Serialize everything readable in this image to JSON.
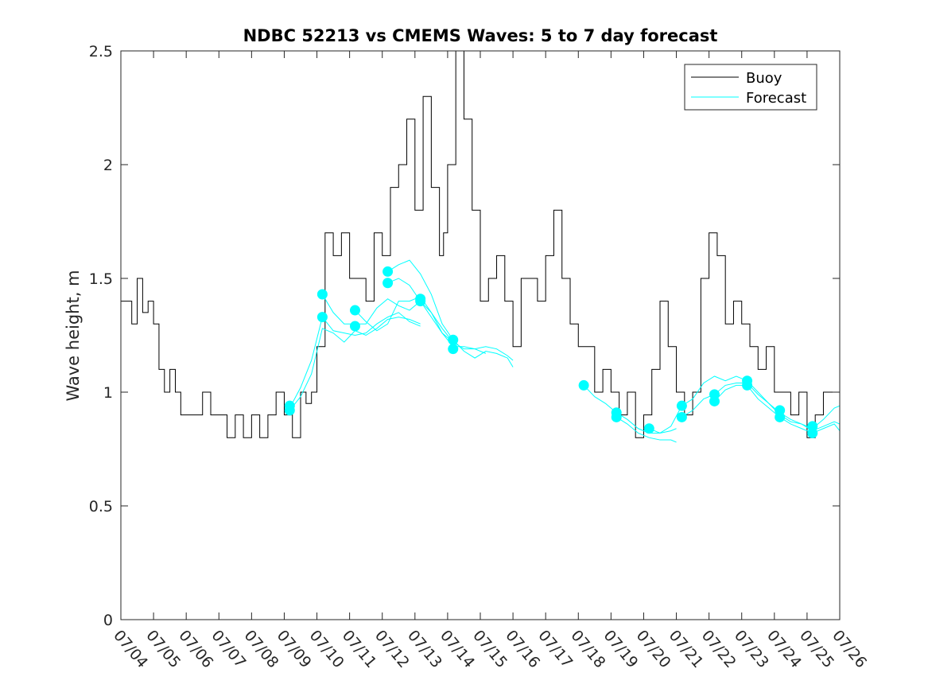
{
  "chart_data": {
    "type": "line",
    "title": "NDBC 52213 vs CMEMS Waves: 5 to 7 day forecast",
    "xlabel": "",
    "ylabel": "Wave height, m",
    "ylim": [
      0,
      2.5
    ],
    "yticks": [
      0,
      0.5,
      1,
      1.5,
      2,
      2.5
    ],
    "xlim": [
      "07/04",
      "07/26"
    ],
    "xticks": [
      "07/04",
      "07/05",
      "07/06",
      "07/07",
      "07/08",
      "07/09",
      "07/10",
      "07/11",
      "07/12",
      "07/13",
      "07/14",
      "07/15",
      "07/16",
      "07/17",
      "07/18",
      "07/19",
      "07/20",
      "07/21",
      "07/22",
      "07/23",
      "07/24",
      "07/25",
      "07/26"
    ],
    "legend": {
      "position": "top-right",
      "entries": [
        "Buoy",
        "Forecast"
      ]
    },
    "colors": {
      "buoy": "#000000",
      "forecast": "#00ffff"
    },
    "buoy": {
      "name": "Buoy",
      "x": [
        "07/04 00:00",
        "07/04 04:00",
        "07/04 08:00",
        "07/04 12:00",
        "07/04 16:00",
        "07/04 20:00",
        "07/05 00:00",
        "07/05 04:00",
        "07/05 08:00",
        "07/05 12:00",
        "07/05 16:00",
        "07/05 20:00",
        "07/06 00:00",
        "07/06 06:00",
        "07/06 12:00",
        "07/06 18:00",
        "07/07 00:00",
        "07/07 06:00",
        "07/07 12:00",
        "07/07 18:00",
        "07/08 00:00",
        "07/08 06:00",
        "07/08 12:00",
        "07/08 18:00",
        "07/09 00:00",
        "07/09 06:00",
        "07/09 12:00",
        "07/09 16:00",
        "07/09 20:00",
        "07/10 00:00",
        "07/10 06:00",
        "07/10 12:00",
        "07/10 18:00",
        "07/11 00:00",
        "07/11 06:00",
        "07/11 12:00",
        "07/11 18:00",
        "07/12 00:00",
        "07/12 06:00",
        "07/12 12:00",
        "07/12 18:00",
        "07/13 00:00",
        "07/13 06:00",
        "07/13 12:00",
        "07/13 18:00",
        "07/13 21:00",
        "07/14 00:00",
        "07/14 06:00",
        "07/14 12:00",
        "07/14 18:00",
        "07/15 00:00",
        "07/15 06:00",
        "07/15 12:00",
        "07/15 18:00",
        "07/16 00:00",
        "07/16 06:00",
        "07/16 12:00",
        "07/16 18:00",
        "07/17 00:00",
        "07/17 06:00",
        "07/17 12:00",
        "07/17 18:00",
        "07/18 00:00",
        "07/18 06:00",
        "07/18 12:00",
        "07/18 18:00",
        "07/19 00:00",
        "07/19 06:00",
        "07/19 12:00",
        "07/19 18:00",
        "07/20 00:00",
        "07/20 06:00",
        "07/20 12:00",
        "07/20 18:00",
        "07/21 00:00",
        "07/21 06:00",
        "07/21 12:00",
        "07/21 18:00",
        "07/22 00:00",
        "07/22 06:00",
        "07/22 12:00",
        "07/22 18:00",
        "07/23 00:00",
        "07/23 06:00",
        "07/23 12:00",
        "07/23 18:00",
        "07/24 00:00",
        "07/24 06:00",
        "07/24 12:00",
        "07/24 18:00",
        "07/25 00:00",
        "07/25 06:00",
        "07/25 12:00",
        "07/25 18:00",
        "07/26 00:00"
      ],
      "y": [
        1.4,
        1.4,
        1.3,
        1.5,
        1.35,
        1.4,
        1.3,
        1.1,
        1.0,
        1.1,
        1.0,
        0.9,
        0.9,
        0.9,
        1.0,
        0.9,
        0.9,
        0.8,
        0.9,
        0.8,
        0.9,
        0.8,
        0.9,
        1.0,
        0.9,
        0.8,
        1.0,
        0.95,
        1.0,
        1.2,
        1.7,
        1.6,
        1.7,
        1.5,
        1.5,
        1.4,
        1.7,
        1.6,
        1.9,
        2.0,
        2.2,
        1.8,
        2.3,
        1.9,
        1.6,
        1.7,
        2.0,
        2.5,
        2.2,
        1.8,
        1.4,
        1.5,
        1.6,
        1.4,
        1.2,
        1.5,
        1.5,
        1.4,
        1.6,
        1.8,
        1.5,
        1.3,
        1.2,
        1.2,
        1.0,
        1.1,
        1.0,
        0.9,
        1.0,
        0.8,
        0.9,
        1.1,
        1.4,
        1.2,
        1.0,
        0.9,
        1.0,
        1.5,
        1.7,
        1.6,
        1.3,
        1.4,
        1.3,
        1.2,
        1.1,
        1.2,
        1.0,
        1.0,
        0.9,
        1.0,
        0.8,
        0.9,
        1.0,
        1.0,
        1.0
      ]
    },
    "series": [
      {
        "x": [
          "07/09 04:00",
          "07/09 12:00",
          "07/09 20:00",
          "07/10 04:00",
          "07/10 12:00",
          "07/10 20:00",
          "07/11 04:00",
          "07/11 12:00",
          "07/11 20:00",
          "07/12 04:00",
          "07/12 12:00",
          "07/12 20:00",
          "07/13 04:00"
        ],
        "y": [
          0.93,
          1.02,
          1.14,
          1.33,
          1.27,
          1.26,
          1.25,
          1.26,
          1.3,
          1.33,
          1.35,
          1.31,
          1.29
        ]
      },
      {
        "x": [
          "07/09 04:00",
          "07/09 12:00",
          "07/09 20:00",
          "07/10 04:00",
          "07/10 12:00",
          "07/10 20:00",
          "07/11 04:00",
          "07/11 12:00",
          "07/11 20:00",
          "07/12 04:00",
          "07/12 12:00",
          "07/12 20:00",
          "07/13 04:00"
        ],
        "y": [
          0.92,
          0.98,
          1.08,
          1.28,
          1.26,
          1.22,
          1.27,
          1.25,
          1.28,
          1.32,
          1.33,
          1.32,
          1.3
        ]
      },
      {
        "x": [
          "07/10 04:00",
          "07/10 12:00",
          "07/10 20:00",
          "07/11 04:00",
          "07/11 12:00",
          "07/11 20:00",
          "07/12 04:00",
          "07/12 12:00",
          "07/12 20:00",
          "07/13 04:00",
          "07/13 12:00",
          "07/13 20:00",
          "07/14 04:00"
        ],
        "y": [
          1.43,
          1.35,
          1.3,
          1.3,
          1.3,
          1.37,
          1.41,
          1.38,
          1.36,
          1.4,
          1.35,
          1.26,
          1.22
        ]
      },
      {
        "x": [
          "07/11 04:00",
          "07/11 12:00",
          "07/11 20:00",
          "07/12 04:00",
          "07/12 12:00",
          "07/12 20:00",
          "07/13 04:00",
          "07/13 12:00",
          "07/13 20:00",
          "07/14 04:00",
          "07/14 12:00",
          "07/14 20:00",
          "07/15 04:00"
        ],
        "y": [
          1.36,
          1.31,
          1.27,
          1.3,
          1.4,
          1.4,
          1.42,
          1.35,
          1.28,
          1.22,
          1.19,
          1.19,
          1.17
        ]
      },
      {
        "x": [
          "07/12 04:00",
          "07/12 12:00",
          "07/12 20:00",
          "07/13 04:00",
          "07/13 12:00",
          "07/13 20:00",
          "07/14 04:00",
          "07/14 12:00",
          "07/14 20:00",
          "07/15 04:00",
          "07/15 12:00",
          "07/15 20:00",
          "07/16 00:00"
        ],
        "y": [
          1.53,
          1.56,
          1.58,
          1.52,
          1.43,
          1.3,
          1.23,
          1.18,
          1.15,
          1.18,
          1.17,
          1.15,
          1.11
        ]
      },
      {
        "x": [
          "07/12 04:00",
          "07/12 12:00",
          "07/12 20:00",
          "07/13 04:00",
          "07/13 12:00",
          "07/13 20:00",
          "07/14 04:00",
          "07/14 12:00",
          "07/14 20:00",
          "07/15 04:00",
          "07/15 12:00",
          "07/15 20:00",
          "07/16 00:00"
        ],
        "y": [
          1.48,
          1.5,
          1.47,
          1.4,
          1.33,
          1.26,
          1.2,
          1.2,
          1.19,
          1.2,
          1.19,
          1.16,
          1.14
        ]
      },
      {
        "x": [
          "07/18 04:00",
          "07/18 12:00",
          "07/18 20:00",
          "07/19 04:00",
          "07/19 12:00",
          "07/19 20:00",
          "07/20 04:00",
          "07/20 12:00",
          "07/20 20:00",
          "07/21 00:00"
        ],
        "y": [
          1.03,
          0.98,
          0.95,
          0.91,
          0.88,
          0.84,
          0.82,
          0.82,
          0.83,
          0.84
        ]
      },
      {
        "x": [
          "07/19 04:00",
          "07/19 12:00",
          "07/19 20:00",
          "07/20 04:00",
          "07/20 12:00",
          "07/20 20:00",
          "07/21 00:00"
        ],
        "y": [
          0.89,
          0.86,
          0.82,
          0.8,
          0.79,
          0.79,
          0.78
        ]
      },
      {
        "x": [
          "07/20 04:00",
          "07/20 12:00",
          "07/20 20:00",
          "07/21 04:00",
          "07/21 12:00",
          "07/21 20:00",
          "07/22 04:00",
          "07/22 12:00",
          "07/22 20:00",
          "07/23 04:00",
          "07/23 12:00",
          "07/23 20:00",
          "07/24 04:00",
          "07/24 12:00",
          "07/24 20:00",
          "07/25 04:00",
          "07/25 12:00",
          "07/25 20:00",
          "07/26 00:00"
        ],
        "y": [
          0.84,
          0.82,
          0.85,
          0.94,
          0.97,
          1.04,
          1.07,
          1.05,
          1.07,
          1.05,
          1.0,
          0.95,
          0.91,
          0.88,
          0.86,
          0.84,
          0.88,
          0.93,
          0.94
        ]
      },
      {
        "x": [
          "07/21 04:00",
          "07/21 12:00",
          "07/21 20:00",
          "07/22 04:00",
          "07/22 12:00",
          "07/22 20:00",
          "07/23 04:00",
          "07/23 12:00",
          "07/23 20:00",
          "07/24 04:00",
          "07/24 12:00",
          "07/24 20:00",
          "07/25 04:00",
          "07/25 12:00",
          "07/25 20:00",
          "07/26 00:00"
        ],
        "y": [
          0.89,
          0.92,
          0.97,
          0.99,
          1.03,
          1.04,
          1.04,
          0.99,
          0.95,
          0.9,
          0.87,
          0.86,
          0.83,
          0.85,
          0.87,
          0.86
        ]
      },
      {
        "x": [
          "07/22 04:00",
          "07/22 12:00",
          "07/22 20:00",
          "07/23 04:00",
          "07/23 12:00",
          "07/23 20:00",
          "07/24 04:00",
          "07/24 12:00",
          "07/24 20:00",
          "07/25 04:00",
          "07/25 12:00",
          "07/25 20:00",
          "07/26 00:00"
        ],
        "y": [
          0.96,
          1.01,
          1.03,
          1.03,
          0.97,
          0.93,
          0.89,
          0.86,
          0.84,
          0.82,
          0.84,
          0.86,
          0.83
        ]
      }
    ],
    "forecast_markers": [
      {
        "x": "07/09 04:00",
        "y": 0.94
      },
      {
        "x": "07/09 04:00",
        "y": 0.92
      },
      {
        "x": "07/10 04:00",
        "y": 1.43
      },
      {
        "x": "07/10 04:00",
        "y": 1.33
      },
      {
        "x": "07/11 04:00",
        "y": 1.36
      },
      {
        "x": "07/11 04:00",
        "y": 1.29
      },
      {
        "x": "07/12 04:00",
        "y": 1.53
      },
      {
        "x": "07/12 04:00",
        "y": 1.48
      },
      {
        "x": "07/13 04:00",
        "y": 1.41
      },
      {
        "x": "07/13 04:00",
        "y": 1.4
      },
      {
        "x": "07/14 04:00",
        "y": 1.23
      },
      {
        "x": "07/14 04:00",
        "y": 1.19
      },
      {
        "x": "07/18 04:00",
        "y": 1.03
      },
      {
        "x": "07/19 04:00",
        "y": 0.91
      },
      {
        "x": "07/19 04:00",
        "y": 0.89
      },
      {
        "x": "07/20 04:00",
        "y": 0.84
      },
      {
        "x": "07/21 04:00",
        "y": 0.94
      },
      {
        "x": "07/21 04:00",
        "y": 0.89
      },
      {
        "x": "07/22 04:00",
        "y": 0.99
      },
      {
        "x": "07/22 04:00",
        "y": 0.96
      },
      {
        "x": "07/23 04:00",
        "y": 1.05
      },
      {
        "x": "07/23 04:00",
        "y": 1.03
      },
      {
        "x": "07/24 04:00",
        "y": 0.92
      },
      {
        "x": "07/24 04:00",
        "y": 0.89
      },
      {
        "x": "07/25 04:00",
        "y": 0.85
      },
      {
        "x": "07/25 04:00",
        "y": 0.82
      }
    ]
  }
}
